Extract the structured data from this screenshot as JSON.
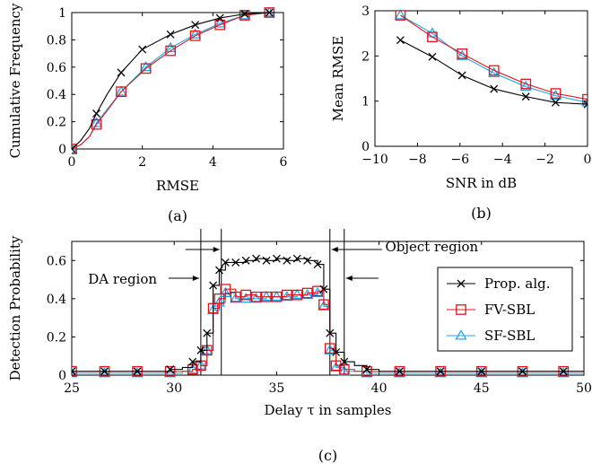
{
  "chart_data": [
    {
      "id": "a",
      "type": "line",
      "caption": "(a)",
      "xlabel": "RMSE",
      "ylabel": "Cumulative Frequency",
      "xlim": [
        0,
        6
      ],
      "ylim": [
        0,
        1
      ],
      "xticks": [
        "0",
        "2",
        "4",
        "6"
      ],
      "yticks": [
        "0",
        "0.2",
        "0.4",
        "0.6",
        "0.8",
        "1"
      ],
      "grid": false,
      "series": [
        {
          "name": "Prop. alg.",
          "color": "#000000",
          "marker": "cross",
          "x": [
            0,
            0.25,
            0.5,
            0.7,
            1.0,
            1.4,
            2.0,
            2.8,
            3.5,
            4.2,
            4.9,
            5.6,
            6.0
          ],
          "y": [
            0,
            0.06,
            0.15,
            0.26,
            0.4,
            0.56,
            0.73,
            0.84,
            0.91,
            0.96,
            0.99,
            1.0,
            1.0
          ]
        },
        {
          "name": "FV-SBL",
          "color": "#e0141e",
          "marker": "square",
          "x": [
            0,
            0.25,
            0.5,
            0.7,
            1.0,
            1.4,
            2.1,
            2.8,
            3.5,
            4.2,
            4.9,
            5.6,
            6.0
          ],
          "y": [
            0,
            0.03,
            0.09,
            0.18,
            0.28,
            0.42,
            0.59,
            0.72,
            0.83,
            0.91,
            0.98,
            1.0,
            1.0
          ]
        },
        {
          "name": "SF-SBL",
          "color": "#24a6e8",
          "marker": "triangle",
          "x": [
            0,
            0.25,
            0.5,
            0.7,
            1.0,
            1.4,
            2.1,
            2.8,
            3.5,
            4.2,
            4.9,
            5.6,
            6.0
          ],
          "y": [
            0,
            0.03,
            0.09,
            0.19,
            0.29,
            0.42,
            0.6,
            0.74,
            0.84,
            0.92,
            0.98,
            1.0,
            1.0
          ]
        }
      ]
    },
    {
      "id": "b",
      "type": "line",
      "caption": "(b)",
      "xlabel": "SNR in dB",
      "ylabel": "Mean RMSE",
      "xlim": [
        -10,
        0
      ],
      "ylim": [
        0,
        3
      ],
      "xticks": [
        "−10",
        "−8",
        "−6",
        "−4",
        "−2",
        "0"
      ],
      "yticks": [
        "0",
        "1",
        "2",
        "3"
      ],
      "grid": false,
      "series": [
        {
          "name": "Prop. alg.",
          "color": "#000000",
          "marker": "cross",
          "x": [
            -8.8,
            -7.3,
            -5.9,
            -4.4,
            -2.9,
            -1.5,
            0
          ],
          "y": [
            2.35,
            1.98,
            1.57,
            1.27,
            1.1,
            0.97,
            0.93
          ]
        },
        {
          "name": "FV-SBL",
          "color": "#e0141e",
          "marker": "square",
          "x": [
            -8.8,
            -7.3,
            -5.9,
            -4.4,
            -2.9,
            -1.5,
            0
          ],
          "y": [
            2.9,
            2.42,
            2.05,
            1.68,
            1.38,
            1.17,
            1.04
          ]
        },
        {
          "name": "SF-SBL",
          "color": "#24a6e8",
          "marker": "triangle",
          "x": [
            -8.8,
            -7.3,
            -5.9,
            -4.4,
            -2.9,
            -1.5,
            0
          ],
          "y": [
            2.9,
            2.5,
            2.0,
            1.62,
            1.32,
            1.12,
            0.97
          ]
        }
      ]
    },
    {
      "id": "c",
      "type": "line",
      "caption": "(c)",
      "xlabel": "Delay τ in samples",
      "ylabel": "Detection Probability",
      "xlim": [
        25,
        50
      ],
      "ylim": [
        0,
        0.7
      ],
      "xticks": [
        "25",
        "30",
        "35",
        "40",
        "45",
        "50"
      ],
      "yticks": [
        "0",
        "0.2",
        "0.4",
        "0.6"
      ],
      "grid": false,
      "legend": {
        "position": "right",
        "entries": [
          "Prop. alg.",
          "FV-SBL",
          "SF-SBL"
        ]
      },
      "annotations": [
        {
          "text": "DA region",
          "lines": [
            31.3,
            37.6
          ]
        },
        {
          "text": "Object region",
          "lines": [
            32.3,
            38.3
          ]
        }
      ],
      "series": [
        {
          "name": "Prop. alg.",
          "color": "#000000",
          "marker": "cross",
          "step": true,
          "x": [
            25,
            25.8,
            26.6,
            27.4,
            28.2,
            29.0,
            29.8,
            30.4,
            30.9,
            31.3,
            31.6,
            31.9,
            32.2,
            32.5,
            33.0,
            33.5,
            34.0,
            34.5,
            35.0,
            35.5,
            36.0,
            36.5,
            37.0,
            37.3,
            37.6,
            37.9,
            38.3,
            38.8,
            39.4,
            40.0,
            41.0,
            42.0,
            43.0,
            44.0,
            45.0,
            46.0,
            47.0,
            48.0,
            49.0,
            50.0
          ],
          "y": [
            0.02,
            0.02,
            0.02,
            0.02,
            0.02,
            0.02,
            0.03,
            0.04,
            0.07,
            0.13,
            0.22,
            0.47,
            0.55,
            0.59,
            0.59,
            0.6,
            0.61,
            0.6,
            0.61,
            0.6,
            0.61,
            0.6,
            0.58,
            0.45,
            0.22,
            0.12,
            0.07,
            0.05,
            0.03,
            0.02,
            0.02,
            0.02,
            0.02,
            0.02,
            0.02,
            0.02,
            0.02,
            0.02,
            0.02,
            0.02
          ]
        },
        {
          "name": "FV-SBL",
          "color": "#e0141e",
          "marker": "square",
          "step": true,
          "x": [
            25,
            25.8,
            26.6,
            27.4,
            28.2,
            29.0,
            29.8,
            30.4,
            30.9,
            31.3,
            31.6,
            31.9,
            32.2,
            32.5,
            33.0,
            33.5,
            34.0,
            34.5,
            35.0,
            35.5,
            36.0,
            36.5,
            37.0,
            37.3,
            37.6,
            37.9,
            38.3,
            38.8,
            39.4,
            40.0,
            41.0,
            42.0,
            43.0,
            44.0,
            45.0,
            46.0,
            47.0,
            48.0,
            49.0,
            50.0
          ],
          "y": [
            0.02,
            0.02,
            0.02,
            0.02,
            0.02,
            0.02,
            0.02,
            0.02,
            0.03,
            0.05,
            0.13,
            0.35,
            0.4,
            0.45,
            0.41,
            0.42,
            0.41,
            0.41,
            0.41,
            0.42,
            0.42,
            0.43,
            0.44,
            0.37,
            0.14,
            0.05,
            0.03,
            0.02,
            0.02,
            0.02,
            0.02,
            0.02,
            0.02,
            0.02,
            0.02,
            0.02,
            0.02,
            0.02,
            0.02,
            0.02
          ]
        },
        {
          "name": "SF-SBL",
          "color": "#24a6e8",
          "marker": "triangle",
          "step": true,
          "x": [
            25,
            25.8,
            26.6,
            27.4,
            28.2,
            29.0,
            29.8,
            30.4,
            30.9,
            31.3,
            31.6,
            31.9,
            32.2,
            32.5,
            33.0,
            33.5,
            34.0,
            34.5,
            35.0,
            35.5,
            36.0,
            36.5,
            37.0,
            37.3,
            37.6,
            37.9,
            38.3,
            38.8,
            39.4,
            40.0,
            41.0,
            42.0,
            43.0,
            44.0,
            45.0,
            46.0,
            47.0,
            48.0,
            49.0,
            50.0
          ],
          "y": [
            0.01,
            0.01,
            0.01,
            0.01,
            0.01,
            0.01,
            0.01,
            0.02,
            0.03,
            0.05,
            0.13,
            0.34,
            0.38,
            0.43,
            0.4,
            0.4,
            0.4,
            0.41,
            0.41,
            0.41,
            0.42,
            0.42,
            0.43,
            0.36,
            0.13,
            0.04,
            0.02,
            0.02,
            0.01,
            0.01,
            0.01,
            0.01,
            0.01,
            0.01,
            0.01,
            0.01,
            0.01,
            0.01,
            0.01,
            0.01
          ]
        }
      ]
    }
  ]
}
